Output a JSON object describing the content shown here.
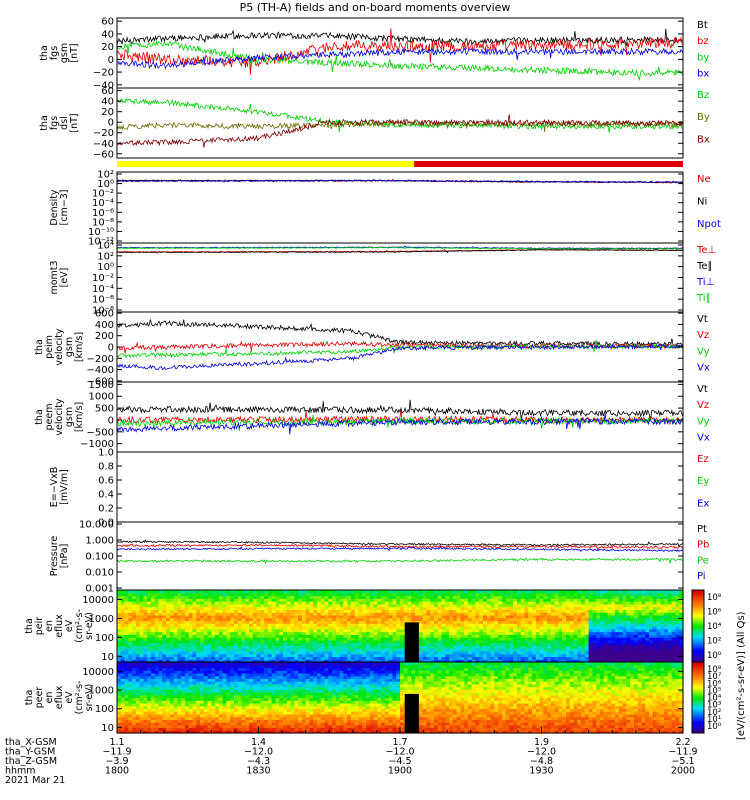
{
  "title": "P5 (TH-A) fields and on-board moments overview",
  "colors": {
    "black": "#000000",
    "red": "#e00000",
    "green": "#00d000",
    "blue": "#0000dd",
    "brown": "#7a0000",
    "olive": "#6b6b00",
    "yellow": "#ffff00",
    "bar_red": "#e00000"
  },
  "chart_data": [
    {
      "type": "line",
      "id": "fgs_gsm",
      "ylabel": [
        "tha",
        "fgs",
        "gsm",
        "[nT]"
      ],
      "yticks": [
        "60",
        "40",
        "20",
        "0",
        "−20",
        "−40"
      ],
      "ylim": [
        -45,
        65
      ],
      "series": [
        {
          "name": "Bt",
          "color": "black",
          "profile": [
            [
              1800,
              28
            ],
            [
              1810,
              33
            ],
            [
              1830,
              38
            ],
            [
              1845,
              37
            ],
            [
              1900,
              32
            ],
            [
              1915,
              28
            ],
            [
              1930,
              30
            ],
            [
              1955,
              31
            ],
            [
              2000,
              30
            ]
          ],
          "noise": 5
        },
        {
          "name": "bz",
          "color": "red",
          "profile": [
            [
              1800,
              8
            ],
            [
              1810,
              0
            ],
            [
              1830,
              -5
            ],
            [
              1845,
              20
            ],
            [
              1900,
              20
            ],
            [
              1930,
              22
            ],
            [
              1955,
              27
            ],
            [
              2000,
              25
            ]
          ],
          "noise": 9
        },
        {
          "name": "by",
          "color": "green",
          "profile": [
            [
              1800,
              20
            ],
            [
              1810,
              25
            ],
            [
              1830,
              0
            ],
            [
              1845,
              -5
            ],
            [
              1900,
              -10
            ],
            [
              1930,
              -17
            ],
            [
              1955,
              -22
            ],
            [
              2000,
              -20
            ]
          ],
          "noise": 5
        },
        {
          "name": "bx",
          "color": "blue",
          "profile": [
            [
              1800,
              -5
            ],
            [
              1810,
              -10
            ],
            [
              1830,
              3
            ],
            [
              1845,
              7
            ],
            [
              1900,
              12
            ],
            [
              1930,
              12
            ],
            [
              1955,
              12
            ],
            [
              2000,
              12
            ]
          ],
          "noise": 5
        }
      ]
    },
    {
      "type": "line",
      "id": "fgs_dsl",
      "ylabel": [
        "tha",
        "fgs",
        "dsl",
        "[nT]"
      ],
      "yticks": [
        "60",
        "40",
        "20",
        "0",
        "−20",
        "−40",
        "−60"
      ],
      "ylim": [
        -68,
        65
      ],
      "series": [
        {
          "name": "Bz",
          "color": "green",
          "profile": [
            [
              1800,
              40
            ],
            [
              1810,
              38
            ],
            [
              1830,
              20
            ],
            [
              1845,
              0
            ],
            [
              1900,
              -5
            ],
            [
              1930,
              -8
            ],
            [
              2000,
              -8
            ]
          ],
          "noise": 5
        },
        {
          "name": "By",
          "color": "olive",
          "profile": [
            [
              1800,
              -10
            ],
            [
              1810,
              -5
            ],
            [
              1830,
              -8
            ],
            [
              1845,
              -5
            ],
            [
              1900,
              -3
            ],
            [
              2000,
              -3
            ]
          ],
          "noise": 5
        },
        {
          "name": "Bx",
          "color": "brown",
          "profile": [
            [
              1800,
              -40
            ],
            [
              1810,
              -38
            ],
            [
              1830,
              -30
            ],
            [
              1845,
              0
            ],
            [
              1900,
              0
            ],
            [
              2000,
              -2
            ]
          ],
          "noise": 5
        }
      ]
    },
    {
      "type": "line",
      "id": "density",
      "log": true,
      "ylabel": [
        "Density",
        "[cm−3]"
      ],
      "yticks": [
        "10²",
        "10⁰",
        "10⁻²",
        "10⁻⁴",
        "10⁻⁶",
        "10⁻⁸",
        "10⁻¹⁰",
        "10⁻¹²"
      ],
      "ylim": [
        -12.5,
        2.3
      ],
      "series": [
        {
          "name": "Ne",
          "color": "red",
          "profile": [
            [
              1800,
              0.45
            ],
            [
              1900,
              0.45
            ],
            [
              1930,
              0.2
            ],
            [
              2000,
              0.1
            ]
          ],
          "noise": 0.12
        },
        {
          "name": "Ni",
          "color": "black",
          "profile": [
            [
              1800,
              0.55
            ],
            [
              1900,
              0.5
            ],
            [
              1930,
              0.25
            ],
            [
              2000,
              0.15
            ]
          ],
          "noise": 0.1
        },
        {
          "name": "Npot",
          "color": "blue",
          "profile": [
            [
              1800,
              0.4
            ],
            [
              1900,
              0.5
            ],
            [
              1930,
              0.3
            ],
            [
              2000,
              0.2
            ]
          ],
          "noise": 0.15
        }
      ]
    },
    {
      "type": "line",
      "id": "moments_temp",
      "log": true,
      "ylabel": [
        "momt3",
        "[eV]"
      ],
      "yticks": [
        "10⁴",
        "10²",
        "10⁰",
        "10⁻²",
        "10⁻⁴",
        "10⁻⁶",
        "10⁻⁸"
      ],
      "ylim": [
        -8.8,
        4.4
      ],
      "series": [
        {
          "name": "Te⊥",
          "color": "red",
          "profile": [
            [
              1800,
              2.7
            ],
            [
              1900,
              2.8
            ],
            [
              1930,
              3.1
            ],
            [
              2000,
              3.0
            ]
          ],
          "noise": 0.08
        },
        {
          "name": "Te∥",
          "color": "black",
          "profile": [
            [
              1800,
              2.6
            ],
            [
              1900,
              2.7
            ],
            [
              1930,
              3.1
            ],
            [
              2000,
              3.0
            ]
          ],
          "noise": 0.08
        },
        {
          "name": "Ti⊥",
          "color": "blue",
          "profile": [
            [
              1800,
              3.5
            ],
            [
              1900,
              3.6
            ],
            [
              1930,
              3.4
            ],
            [
              2000,
              3.4
            ]
          ],
          "noise": 0.08
        },
        {
          "name": "Ti∥",
          "color": "green",
          "profile": [
            [
              1800,
              3.4
            ],
            [
              1900,
              3.5
            ],
            [
              1930,
              3.3
            ],
            [
              2000,
              3.3
            ]
          ],
          "noise": 0.08
        }
      ]
    },
    {
      "type": "line",
      "id": "peim_velocity",
      "ylabel": [
        "tha",
        "peim",
        "velocity",
        "gsm",
        "[km/s]"
      ],
      "yticks": [
        "600",
        "400",
        "200",
        "0",
        "−200",
        "−400",
        "−600"
      ],
      "ylim": [
        -620,
        620
      ],
      "series": [
        {
          "name": "Vt",
          "color": "black",
          "profile": [
            [
              1800,
              380
            ],
            [
              1810,
              420
            ],
            [
              1830,
              360
            ],
            [
              1850,
              280
            ],
            [
              1900,
              80
            ],
            [
              1930,
              60
            ],
            [
              2000,
              50
            ]
          ],
          "noise": 40
        },
        {
          "name": "Vz",
          "color": "red",
          "profile": [
            [
              1800,
              -20
            ],
            [
              1830,
              30
            ],
            [
              1850,
              60
            ],
            [
              1900,
              30
            ],
            [
              2000,
              20
            ]
          ],
          "noise": 40
        },
        {
          "name": "Vy",
          "color": "green",
          "profile": [
            [
              1800,
              -150
            ],
            [
              1830,
              -120
            ],
            [
              1850,
              -80
            ],
            [
              1900,
              0
            ],
            [
              2000,
              10
            ]
          ],
          "noise": 35
        },
        {
          "name": "Vx",
          "color": "blue",
          "profile": [
            [
              1800,
              -330
            ],
            [
              1810,
              -370
            ],
            [
              1830,
              -290
            ],
            [
              1850,
              -200
            ],
            [
              1900,
              -20
            ],
            [
              2000,
              10
            ]
          ],
          "noise": 35
        }
      ]
    },
    {
      "type": "line",
      "id": "peem_velocity",
      "ylabel": [
        "tha",
        "peem",
        "velocity",
        "gsm",
        "[km/s]"
      ],
      "yticks": [
        "1500",
        "1000",
        "500",
        "0",
        "−500",
        "−1000"
      ],
      "ylim": [
        -1350,
        1600
      ],
      "series": [
        {
          "name": "Vt",
          "color": "black",
          "profile": [
            [
              1800,
              450
            ],
            [
              1900,
              420
            ],
            [
              1930,
              300
            ],
            [
              2000,
              280
            ]
          ],
          "noise": 130
        },
        {
          "name": "Vz",
          "color": "red",
          "profile": [
            [
              1800,
              0
            ],
            [
              1900,
              30
            ],
            [
              2000,
              0
            ]
          ],
          "noise": 130
        },
        {
          "name": "Vy",
          "color": "green",
          "profile": [
            [
              1800,
              -150
            ],
            [
              1900,
              -60
            ],
            [
              2000,
              -40
            ]
          ],
          "noise": 130
        },
        {
          "name": "Vx",
          "color": "blue",
          "profile": [
            [
              1800,
              -400
            ],
            [
              1900,
              -80
            ],
            [
              2000,
              -60
            ]
          ],
          "noise": 130
        }
      ]
    },
    {
      "type": "line",
      "id": "efield",
      "ylabel": [
        "E=−VxB",
        "[mV/m]"
      ],
      "yticks": [
        "1.0",
        "0.8",
        "0.6",
        "0.4",
        "0.2",
        "0.0"
      ],
      "ylim": [
        0,
        1
      ],
      "series": [
        {
          "name": "Ez",
          "color": "red",
          "profile": []
        },
        {
          "name": "Ey",
          "color": "green",
          "profile": []
        },
        {
          "name": "Ex",
          "color": "blue",
          "profile": []
        }
      ]
    },
    {
      "type": "line",
      "id": "pressure",
      "log": true,
      "ylabel": [
        "Pressure",
        "[nPa]"
      ],
      "yticks": [
        "10.000",
        "1.000",
        "0.100",
        "0.010",
        "0.001"
      ],
      "ylim": [
        -3,
        1
      ],
      "series": [
        {
          "name": "Pt",
          "color": "black",
          "profile": [
            [
              1800,
              -0.15
            ],
            [
              1830,
              -0.2
            ],
            [
              1900,
              -0.3
            ],
            [
              1930,
              -0.35
            ],
            [
              2000,
              -0.3
            ]
          ],
          "noise": 0.05
        },
        {
          "name": "Pb",
          "color": "red",
          "profile": [
            [
              1800,
              -0.4
            ],
            [
              1830,
              -0.35
            ],
            [
              1900,
              -0.45
            ],
            [
              1930,
              -0.45
            ],
            [
              2000,
              -0.5
            ]
          ],
          "noise": 0.06
        },
        {
          "name": "Pe",
          "color": "green",
          "profile": [
            [
              1800,
              -1.3
            ],
            [
              1900,
              -1.3
            ],
            [
              1930,
              -1.2
            ],
            [
              2000,
              -1.2
            ]
          ],
          "noise": 0.06
        },
        {
          "name": "Pi",
          "color": "blue",
          "profile": [
            [
              1800,
              -0.6
            ],
            [
              1900,
              -0.55
            ],
            [
              1930,
              -0.6
            ],
            [
              2000,
              -0.7
            ]
          ],
          "noise": 0.05
        }
      ]
    },
    {
      "type": "heatmap",
      "id": "peir_spec",
      "ylabel": [
        "tha",
        "peir",
        "en",
        "eflux",
        "eV",
        "(cm²-s-",
        "sr-eV)"
      ],
      "yticks": [
        "10000",
        "1000",
        "100",
        "10"
      ],
      "ylim": [
        0.7,
        4.5
      ],
      "colorbar_ticks": [
        "10⁸",
        "10⁶",
        "10⁴",
        "10²",
        "10⁰"
      ]
    },
    {
      "type": "heatmap",
      "id": "peer_spec",
      "ylabel": [
        "tha",
        "peer",
        "en",
        "eflux",
        "eV",
        "(cm²-s-",
        "sr-eV)"
      ],
      "yticks": [
        "10000",
        "1000",
        "100",
        "10"
      ],
      "ylim": [
        0.7,
        4.5
      ],
      "colorbar_ticks": [
        "10⁸",
        "10⁷",
        "10⁶",
        "10⁵",
        "10⁴",
        "10³",
        "10²",
        "10¹",
        "10⁰"
      ]
    }
  ],
  "mode_bar": [
    {
      "start": 1800,
      "end": 1903,
      "color": "yellow"
    },
    {
      "start": 1903,
      "end": 2000,
      "color": "bar_red"
    }
  ],
  "colorbar_label": "[eV/(cm²-s-sr-eV)] (All Qs)",
  "xaxis": {
    "tmin": 1800,
    "tmax": 2000,
    "rows": [
      {
        "label": "tha_X-GSM",
        "values": [
          "1.1",
          "1.4",
          "1.7",
          "1.9",
          "2.2"
        ]
      },
      {
        "label": "tha_Y-GSM",
        "values": [
          "−11.9",
          "−12.0",
          "−12.0",
          "−12.0",
          "−11.9"
        ]
      },
      {
        "label": "tha_Z-GSM",
        "values": [
          "−3.9",
          "−4.3",
          "−4.5",
          "−4.8",
          "−5.1"
        ]
      },
      {
        "label": "hhmm",
        "values": [
          "1800",
          "1830",
          "1900",
          "1930",
          "2000"
        ]
      }
    ],
    "date": "2021 Mar 21"
  }
}
